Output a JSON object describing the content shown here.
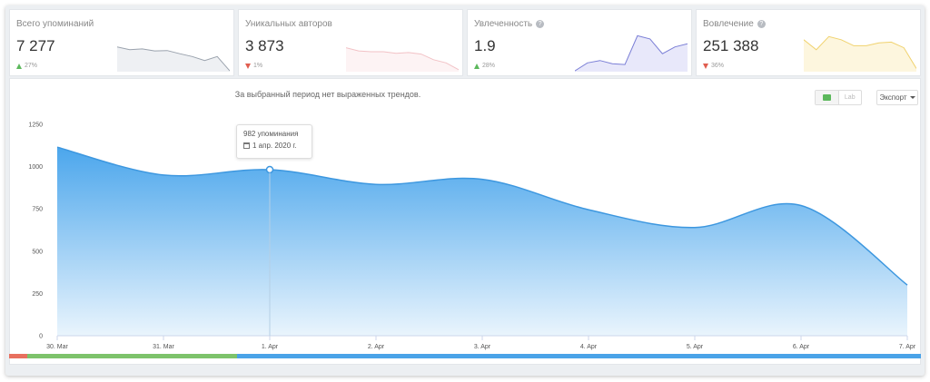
{
  "cards": [
    {
      "title": "Всего упоминаний",
      "value": "7 277",
      "change": "27%",
      "direction": "up",
      "info": false,
      "spark": [
        0.62,
        0.55,
        0.57,
        0.52,
        0.53,
        0.45,
        0.38,
        0.28,
        0.38,
        0.02
      ],
      "spark_color": "#9aa2ad",
      "spark_fill": "#eef0f3"
    },
    {
      "title": "Уникальных авторов",
      "value": "3 873",
      "change": "1%",
      "direction": "down",
      "info": false,
      "spark": [
        0.6,
        0.52,
        0.5,
        0.5,
        0.46,
        0.48,
        0.44,
        0.3,
        0.22,
        0.05
      ],
      "spark_color": "#f2c2c6",
      "spark_fill": "#fdf3f4"
    },
    {
      "title": "Увлеченность",
      "value": "1.9",
      "change": "28%",
      "direction": "up",
      "info": true,
      "spark": [
        0.02,
        0.22,
        0.28,
        0.2,
        0.18,
        0.9,
        0.82,
        0.45,
        0.62,
        0.7
      ],
      "spark_color": "#7b7fd6",
      "spark_fill": "#e8e8fa"
    },
    {
      "title": "Вовлечение",
      "value": "251 388",
      "change": "36%",
      "direction": "down",
      "info": true,
      "spark": [
        0.8,
        0.55,
        0.88,
        0.8,
        0.65,
        0.65,
        0.72,
        0.74,
        0.6,
        0.08
      ],
      "spark_color": "#f0d26e",
      "spark_fill": "#fdf6de"
    }
  ],
  "main": {
    "trend_message": "За выбранный период нет выраженных трендов.",
    "toggle_second": "Lab",
    "export_label": "Экспорт",
    "tooltip": {
      "value": "982 упоминания",
      "date": "1 апр. 2020 г."
    }
  },
  "chart_data": {
    "type": "area",
    "x": [
      "30. Mar",
      "31. Mar",
      "1. Apr",
      "2. Apr",
      "3. Apr",
      "4. Apr",
      "5. Apr",
      "6. Apr",
      "7. Apr"
    ],
    "series": [
      {
        "values": [
          1115,
          950,
          982,
          895,
          925,
          745,
          640,
          770,
          300
        ]
      }
    ],
    "y_ticks": [
      0,
      250,
      500,
      750,
      1000,
      1250
    ],
    "ylim": [
      0,
      1250
    ],
    "color": "#4ba6ec",
    "highlight_index": 2
  },
  "sentiment_bar": [
    {
      "fraction": 0.02,
      "color": "#e8705f"
    },
    {
      "fraction": 0.23,
      "color": "#7dc36b"
    },
    {
      "fraction": 0.75,
      "color": "#4aa3e8"
    }
  ]
}
